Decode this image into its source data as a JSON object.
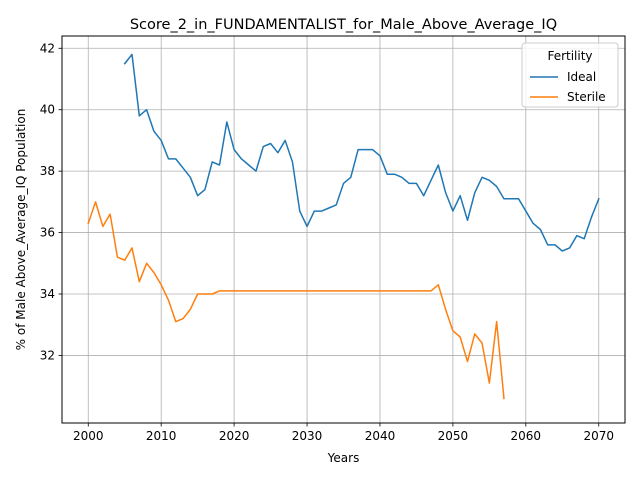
{
  "chart_data": {
    "type": "line",
    "title": "Score_2_in_FUNDAMENTALIST_for_Male_Above_Average_IQ",
    "xlabel": "Years",
    "ylabel": "% of Male Above_Average_IQ Population",
    "xlim": [
      1996.4,
      2073.6
    ],
    "ylim": [
      29.8,
      42.4
    ],
    "x_ticks": [
      2000,
      2010,
      2020,
      2030,
      2040,
      2050,
      2060,
      2070
    ],
    "y_ticks": [
      32,
      34,
      36,
      38,
      40,
      42
    ],
    "grid": true,
    "legend": {
      "title": "Fertility",
      "placement": "top-right"
    },
    "series": [
      {
        "name": "Ideal",
        "color": "#1f77b4",
        "x": [
          2005,
          2006,
          2007,
          2008,
          2009,
          2010,
          2011,
          2012,
          2013,
          2014,
          2015,
          2016,
          2017,
          2018,
          2019,
          2020,
          2021,
          2022,
          2023,
          2024,
          2025,
          2026,
          2027,
          2028,
          2029,
          2030,
          2031,
          2032,
          2033,
          2034,
          2035,
          2036,
          2037,
          2038,
          2039,
          2040,
          2041,
          2042,
          2043,
          2044,
          2045,
          2046,
          2047,
          2048,
          2049,
          2050,
          2051,
          2052,
          2053,
          2054,
          2055,
          2056,
          2057,
          2058,
          2059,
          2060,
          2061,
          2062,
          2063,
          2064,
          2065,
          2066,
          2067,
          2068,
          2069,
          2070
        ],
        "y": [
          41.5,
          41.8,
          39.8,
          40.0,
          39.3,
          39.0,
          38.4,
          38.4,
          38.1,
          37.8,
          37.2,
          37.4,
          38.3,
          38.2,
          39.6,
          38.7,
          38.4,
          38.2,
          38.0,
          38.8,
          38.9,
          38.6,
          39.0,
          38.3,
          36.7,
          36.2,
          36.7,
          36.7,
          36.8,
          36.9,
          37.6,
          37.8,
          38.7,
          38.7,
          38.7,
          38.5,
          37.9,
          37.9,
          37.8,
          37.6,
          37.6,
          37.2,
          37.7,
          38.2,
          37.3,
          36.7,
          37.2,
          36.4,
          37.3,
          37.8,
          37.7,
          37.5,
          37.1,
          37.1,
          37.1,
          36.7,
          36.3,
          36.1,
          35.6,
          35.6,
          35.4,
          35.5,
          35.9,
          35.8,
          36.5,
          37.1
        ]
      },
      {
        "name": "Sterile",
        "color": "#ff7f0e",
        "x": [
          2000,
          2001,
          2002,
          2003,
          2004,
          2005,
          2006,
          2007,
          2008,
          2009,
          2010,
          2011,
          2012,
          2013,
          2014,
          2015,
          2016,
          2017,
          2018,
          2019,
          2020,
          2021,
          2022,
          2023,
          2024,
          2025,
          2026,
          2027,
          2028,
          2029,
          2030,
          2031,
          2032,
          2033,
          2034,
          2035,
          2036,
          2037,
          2038,
          2039,
          2040,
          2041,
          2042,
          2043,
          2044,
          2045,
          2046,
          2047,
          2048,
          2049,
          2050,
          2051,
          2052,
          2053,
          2054,
          2055,
          2056,
          2057
        ],
        "y": [
          36.3,
          37.0,
          36.2,
          36.6,
          35.2,
          35.1,
          35.5,
          34.4,
          35.0,
          34.7,
          34.3,
          33.8,
          33.1,
          33.2,
          33.5,
          34.0,
          34.0,
          34.0,
          34.1,
          34.1,
          34.1,
          34.1,
          34.1,
          34.1,
          34.1,
          34.1,
          34.1,
          34.1,
          34.1,
          34.1,
          34.1,
          34.1,
          34.1,
          34.1,
          34.1,
          34.1,
          34.1,
          34.1,
          34.1,
          34.1,
          34.1,
          34.1,
          34.1,
          34.1,
          34.1,
          34.1,
          34.1,
          34.1,
          34.3,
          33.5,
          32.8,
          32.6,
          31.8,
          32.7,
          32.4,
          31.1,
          33.1,
          30.6
        ]
      }
    ]
  }
}
